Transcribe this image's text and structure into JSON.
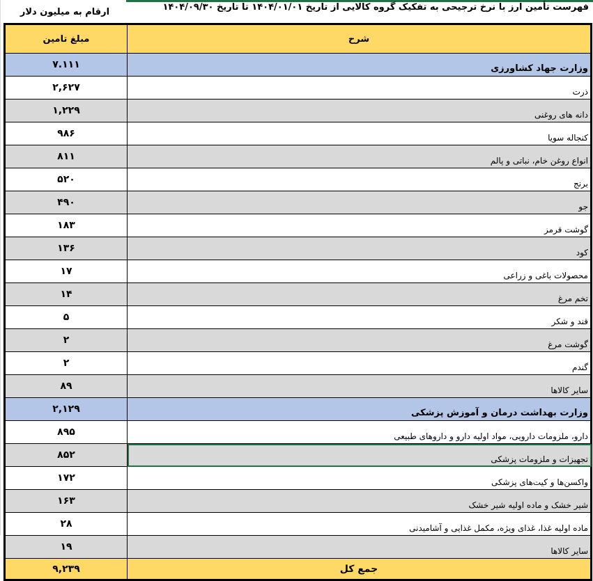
{
  "header": {
    "title": "فهرست تأمین ارز با نرخ ترجیحی به تفکیک گروه کالایی از تاریخ ۱۴۰۴/۰۱/۰۱ تا تاریخ ۱۴۰۴/۰۹/۳۰",
    "units": "ارقام به میلیون دلار"
  },
  "columns": {
    "amount": "مبلغ تامین",
    "description": "شرح"
  },
  "rows": [
    {
      "type": "ministry",
      "description": "وزارت جهاد کشاورزی",
      "amount": "۷.۱۱۱"
    },
    {
      "type": "item",
      "description": "ذرت",
      "amount": "۲,۶۲۷"
    },
    {
      "type": "item",
      "description": "دانه های روغنی",
      "amount": "۱,۲۲۹"
    },
    {
      "type": "item",
      "description": "کنجاله سویا",
      "amount": "۹۸۶"
    },
    {
      "type": "item",
      "description": "انواع روغن خام، نباتی و پالم",
      "amount": "۸۱۱"
    },
    {
      "type": "item",
      "description": "برنج",
      "amount": "۵۲۰"
    },
    {
      "type": "item",
      "description": "جو",
      "amount": "۴۹۰"
    },
    {
      "type": "item",
      "description": "گوشت قرمز",
      "amount": "۱۸۳"
    },
    {
      "type": "item",
      "description": "کود",
      "amount": "۱۳۶"
    },
    {
      "type": "item",
      "description": "محصولات باغی و زراعی",
      "amount": "۱۷"
    },
    {
      "type": "item",
      "description": "تخم مرغ",
      "amount": "۱۴"
    },
    {
      "type": "item",
      "description": "قند و شکر",
      "amount": "۵"
    },
    {
      "type": "item",
      "description": "گوشت مرغ",
      "amount": "۲"
    },
    {
      "type": "item",
      "description": "گندم",
      "amount": "۲"
    },
    {
      "type": "item",
      "description": "سایر کالاها",
      "amount": "۸۹"
    },
    {
      "type": "ministry",
      "description": "وزارت بهداشت درمان و آموزش پزشکی",
      "amount": "۲,۱۲۹"
    },
    {
      "type": "item",
      "description": "دارو، ملزومات دارویی، مواد اولیه دارو و داروهای طبیعی",
      "amount": "۸۹۵"
    },
    {
      "type": "item",
      "description": "تجهیزات و ملزومات پزشکی",
      "amount": "۸۵۲",
      "selected": true
    },
    {
      "type": "item",
      "description": "واکسن‌ها و کیت‌های پزشکی",
      "amount": "۱۷۲"
    },
    {
      "type": "item",
      "description": "شیر خشک و ماده اولیه شیر خشک",
      "amount": "۱۶۳"
    },
    {
      "type": "item",
      "description": "ماده اولیه غذا، غذای ویژه، مکمل غذایی و آشامیدنی",
      "amount": "۲۸"
    },
    {
      "type": "item",
      "description": "سایر کالاها",
      "amount": "۱۹"
    },
    {
      "type": "total",
      "description": "جمع کل",
      "amount": "۹,۲۳۹"
    }
  ],
  "colors": {
    "header": "#ffd966",
    "ministry": "#b4c6e7",
    "shade": "#d9d9d9",
    "selection": "#217346"
  }
}
